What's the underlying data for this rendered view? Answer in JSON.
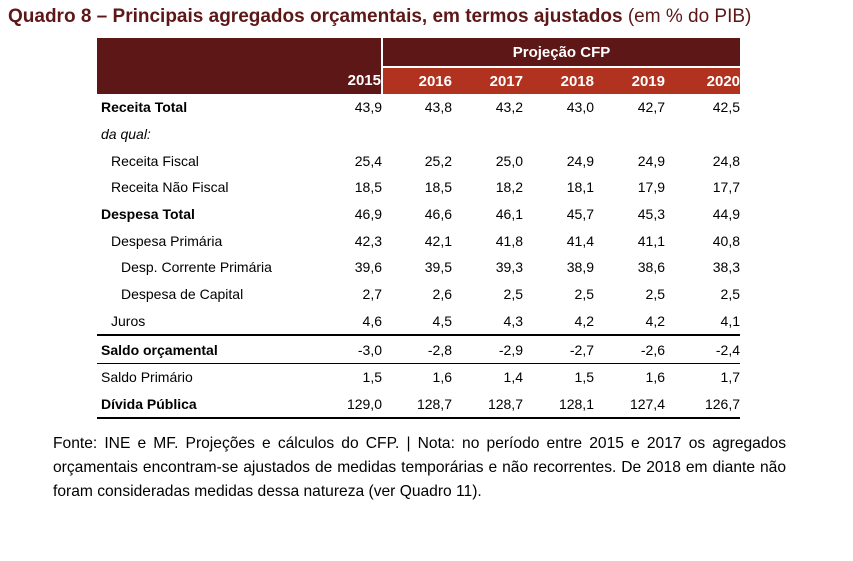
{
  "title": {
    "main": "Quadro 8 – Principais agregados orçamentais, em termos ajustados",
    "unit": "(em % do PIB)"
  },
  "header": {
    "projection_label": "Projeção CFP",
    "years": [
      "2015",
      "2016",
      "2017",
      "2018",
      "2019",
      "2020"
    ]
  },
  "rows": [
    {
      "label": "Receita Total",
      "values": [
        "43,9",
        "43,8",
        "43,2",
        "43,0",
        "42,7",
        "42,5"
      ]
    },
    {
      "label": "da qual:",
      "values": [
        "",
        "",
        "",
        "",
        "",
        ""
      ]
    },
    {
      "label": "Receita Fiscal",
      "values": [
        "25,4",
        "25,2",
        "25,0",
        "24,9",
        "24,9",
        "24,8"
      ]
    },
    {
      "label": "Receita Não Fiscal",
      "values": [
        "18,5",
        "18,5",
        "18,2",
        "18,1",
        "17,9",
        "17,7"
      ]
    },
    {
      "label": "Despesa Total",
      "values": [
        "46,9",
        "46,6",
        "46,1",
        "45,7",
        "45,3",
        "44,9"
      ]
    },
    {
      "label": "Despesa Primária",
      "values": [
        "42,3",
        "42,1",
        "41,8",
        "41,4",
        "41,1",
        "40,8"
      ]
    },
    {
      "label": "Desp. Corrente Primária",
      "values": [
        "39,6",
        "39,5",
        "39,3",
        "38,9",
        "38,6",
        "38,3"
      ]
    },
    {
      "label": "Despesa de Capital",
      "values": [
        "2,7",
        "2,6",
        "2,5",
        "2,5",
        "2,5",
        "2,5"
      ]
    },
    {
      "label": "Juros",
      "values": [
        "4,6",
        "4,5",
        "4,3",
        "4,2",
        "4,2",
        "4,1"
      ]
    },
    {
      "label": "Saldo orçamental",
      "values": [
        "-3,0",
        "-2,8",
        "-2,9",
        "-2,7",
        "-2,6",
        "-2,4"
      ]
    },
    {
      "label": "Saldo Primário",
      "values": [
        "1,5",
        "1,6",
        "1,4",
        "1,5",
        "1,6",
        "1,7"
      ]
    },
    {
      "label": "Dívida Pública",
      "values": [
        "129,0",
        "128,7",
        "128,7",
        "128,1",
        "127,4",
        "126,7"
      ]
    }
  ],
  "note": "Fonte: INE e MF. Projeções e cálculos do CFP. | Nota: no período entre 2015 e 2017 os agregados orçamentais encontram-se ajustados de medidas temporárias e não recorrentes. De 2018 em diante não foram consideradas medidas dessa natureza (ver Quadro 11).",
  "colors": {
    "header_dark": "#5e1717",
    "header_projection": "#b0321f",
    "title": "#5e1717"
  }
}
